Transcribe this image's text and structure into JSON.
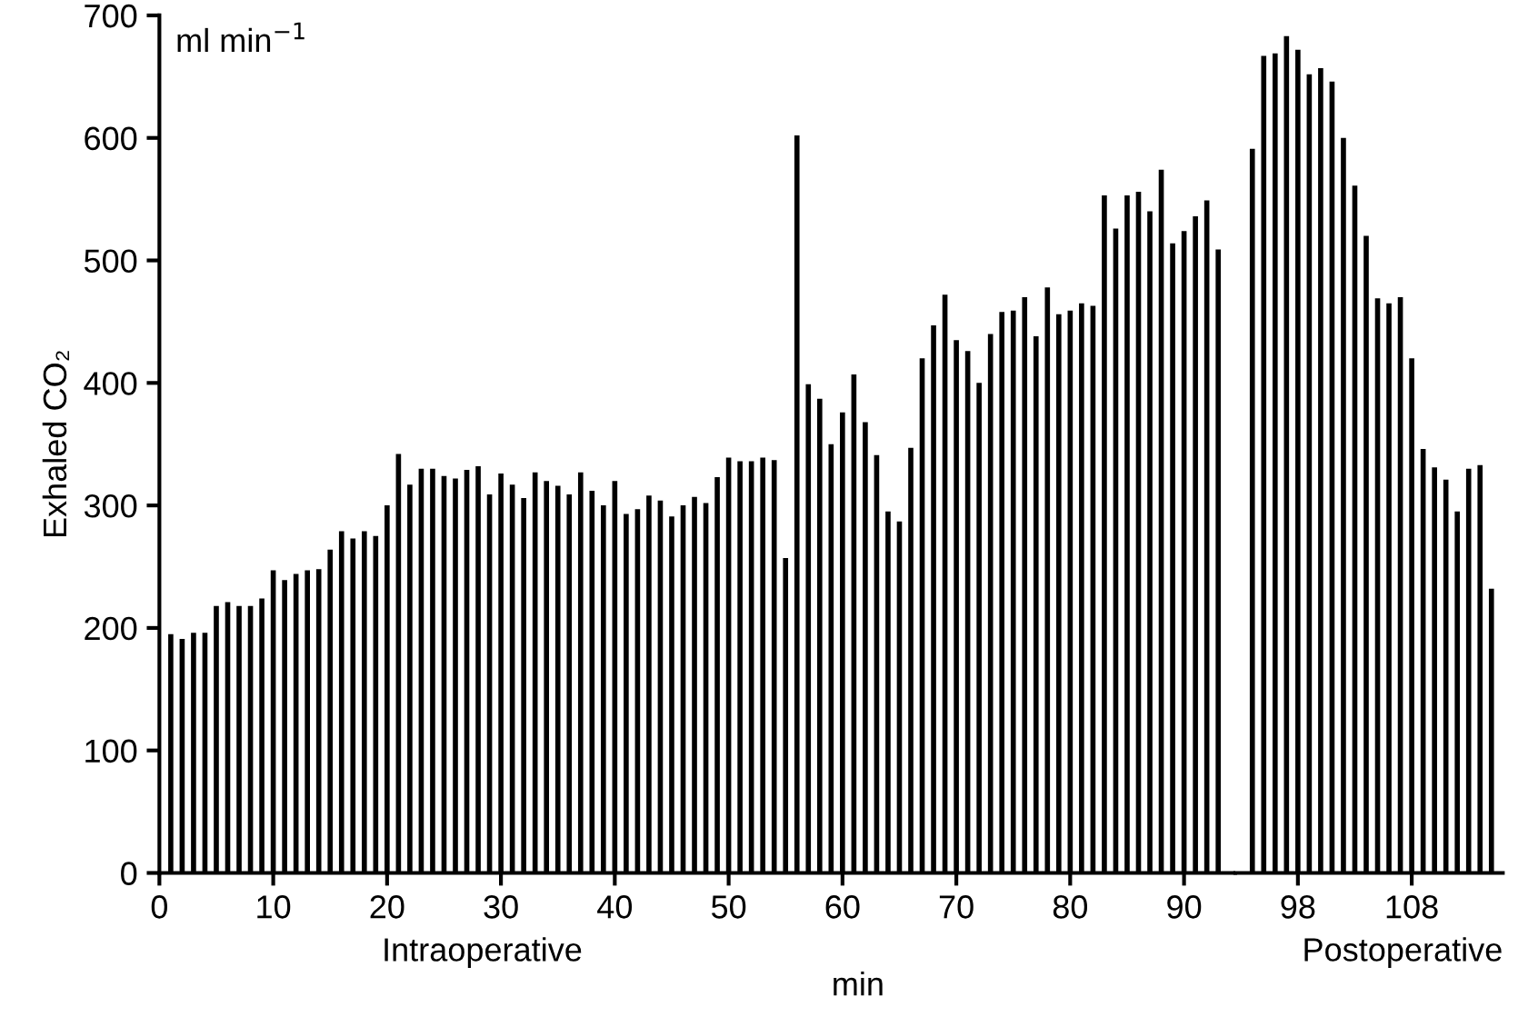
{
  "chart_data": [
    {
      "type": "bar",
      "xlabel": "min",
      "ylabel": "Exhaled CO₂",
      "annotations": [
        "ml min$^{−1}$",
        "Intraoperative"
      ],
      "x": [
        1,
        2,
        3,
        4,
        5,
        6,
        7,
        8,
        9,
        10,
        11,
        12,
        13,
        14,
        15,
        16,
        17,
        18,
        19,
        20,
        21,
        22,
        23,
        24,
        25,
        26,
        27,
        28,
        29,
        30,
        31,
        32,
        33,
        34,
        35,
        36,
        37,
        38,
        39,
        40,
        41,
        42,
        43,
        44,
        45,
        46,
        47,
        48,
        49,
        50,
        51,
        52,
        53,
        54,
        55,
        56,
        57,
        58,
        59,
        60,
        61,
        62,
        63,
        64,
        65,
        66,
        67,
        68,
        69,
        70,
        71,
        72,
        73,
        74,
        75,
        76,
        77,
        78,
        79,
        80,
        81,
        82,
        83,
        84,
        85,
        86,
        87,
        88,
        89,
        90,
        91,
        92,
        93
      ],
      "values": [
        195,
        191,
        196,
        196,
        218,
        221,
        218,
        218,
        224,
        247,
        239,
        244,
        247,
        248,
        264,
        279,
        273,
        279,
        275,
        300,
        342,
        317,
        330,
        330,
        324,
        322,
        329,
        332,
        309,
        326,
        317,
        306,
        327,
        320,
        316,
        309,
        327,
        312,
        300,
        320,
        293,
        297,
        308,
        304,
        291,
        300,
        307,
        302,
        323,
        339,
        336,
        336,
        339,
        337,
        257,
        602,
        399,
        387,
        350,
        376,
        407,
        368,
        341,
        295,
        287,
        347,
        420,
        447,
        472,
        435,
        426,
        400,
        440,
        458,
        459,
        470,
        438,
        478,
        456,
        459,
        465,
        463,
        553,
        526,
        553,
        556,
        540,
        574,
        514,
        524,
        536,
        549,
        509
      ],
      "color": "#000000",
      "xlim": [
        0,
        94.5
      ],
      "xticks": [
        0,
        10,
        20,
        30,
        40,
        50,
        60,
        70,
        80,
        90
      ],
      "ylim": [
        0,
        700
      ],
      "yticks": [
        0,
        100,
        200,
        300,
        400,
        500,
        600,
        700
      ],
      "grid": false
    },
    {
      "type": "bar",
      "annotations": [
        "Postoperative"
      ],
      "x": [
        94,
        95,
        96,
        97,
        98,
        99,
        100,
        101,
        102,
        103,
        104,
        105,
        106,
        107,
        108,
        109,
        110,
        111,
        112,
        113,
        114,
        115
      ],
      "values": [
        591,
        667,
        669,
        683,
        672,
        652,
        657,
        646,
        600,
        561,
        520,
        469,
        465,
        470,
        420,
        346,
        331,
        321,
        295,
        330,
        333,
        232
      ],
      "color": "#000000",
      "xlim": [
        92.5,
        116
      ],
      "xticks": [
        98,
        108
      ],
      "ylim": [
        0,
        700
      ],
      "tick_labels": "x",
      "grid": false
    }
  ]
}
